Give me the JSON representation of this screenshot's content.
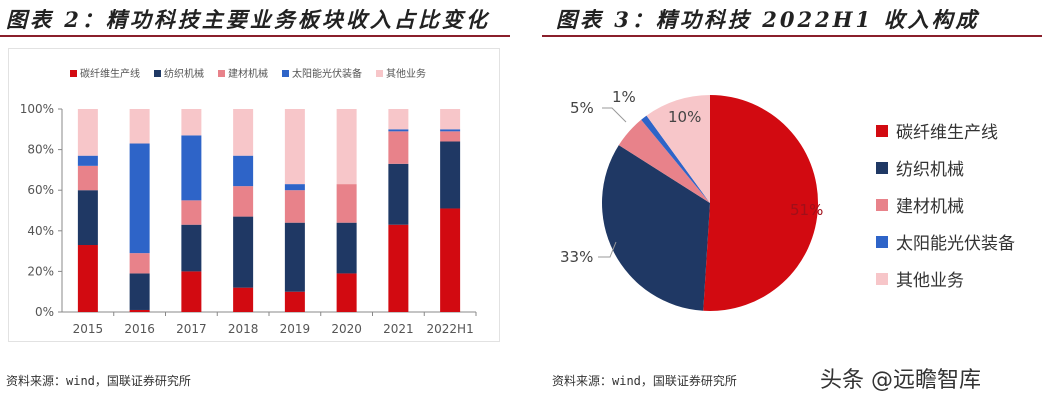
{
  "left": {
    "title": "图表 2：精功科技主要业务板块收入占比变化",
    "source": "资料来源：wind，国联证券研究所"
  },
  "right": {
    "title": "图表 3：精功科技 2022H1 收入构成",
    "source": "资料来源：wind，国联证券研究所"
  },
  "watermark": "头条 @远瞻智库",
  "chart_data": [
    {
      "type": "bar",
      "stacked": true,
      "categories": [
        "2015",
        "2016",
        "2017",
        "2018",
        "2019",
        "2020",
        "2021",
        "2022H1"
      ],
      "yticks": [
        "0%",
        "20%",
        "40%",
        "60%",
        "80%",
        "100%"
      ],
      "ylim": [
        0,
        100
      ],
      "legend_position": "top",
      "series": [
        {
          "name": "碳纤维生产线",
          "color": "#d20a11",
          "values": [
            33,
            1,
            20,
            12,
            10,
            19,
            43,
            51
          ]
        },
        {
          "name": "纺织机械",
          "color": "#1f3864",
          "values": [
            27,
            18,
            23,
            35,
            34,
            25,
            30,
            33
          ]
        },
        {
          "name": "建材机械",
          "color": "#e8828a",
          "values": [
            12,
            10,
            12,
            15,
            16,
            19,
            16,
            5
          ]
        },
        {
          "name": "太阳能光伏装备",
          "color": "#2e64c8",
          "values": [
            5,
            54,
            32,
            15,
            3,
            0,
            1,
            1
          ]
        },
        {
          "name": "其他业务",
          "color": "#f7c6c9",
          "values": [
            23,
            17,
            13,
            23,
            37,
            37,
            10,
            10
          ]
        }
      ]
    },
    {
      "type": "pie",
      "labels": [
        "碳纤维生产线",
        "纺织机械",
        "建材机械",
        "太阳能光伏装备",
        "其他业务"
      ],
      "values": [
        51,
        33,
        5,
        1,
        10
      ],
      "value_labels": [
        "51%",
        "33%",
        "5%",
        "1%",
        "10%"
      ],
      "colors": [
        "#d20a11",
        "#1f3864",
        "#e8828a",
        "#2e64c8",
        "#f7c6c9"
      ],
      "legend_position": "right"
    }
  ]
}
